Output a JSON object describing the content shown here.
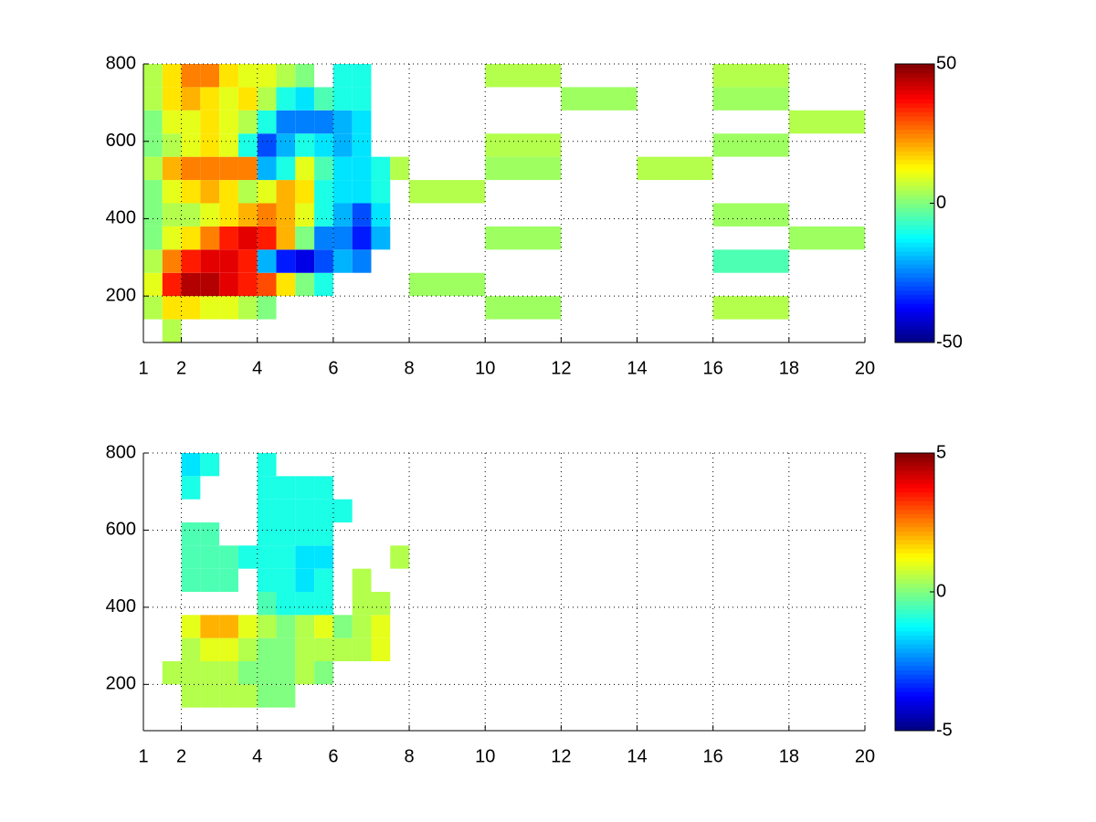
{
  "chart_data": [
    {
      "type": "heatmap",
      "colormap": "jet",
      "grid": true,
      "xlim": [
        1,
        20
      ],
      "ylim": [
        80,
        800
      ],
      "xticks": [
        1,
        2,
        4,
        6,
        8,
        10,
        12,
        14,
        16,
        18,
        20
      ],
      "yticks": [
        200,
        400,
        600,
        800
      ],
      "clim": [
        -50,
        50
      ],
      "cticks": [
        -50,
        0,
        50
      ],
      "xedges": [
        1,
        1.5,
        2,
        2.5,
        3,
        3.5,
        4,
        4.5,
        5,
        5.5,
        6,
        6.5,
        7,
        7.5,
        8,
        10,
        12,
        14,
        16,
        18,
        20
      ],
      "yedges": [
        80,
        140,
        200,
        260,
        320,
        380,
        440,
        500,
        560,
        620,
        680,
        740,
        800
      ],
      "values": [
        [
          null,
          5,
          null,
          null,
          null,
          null,
          null,
          null,
          null,
          null,
          null,
          null,
          null,
          null,
          null,
          null,
          null,
          null,
          null,
          null
        ],
        [
          5,
          15,
          15,
          10,
          10,
          5,
          0,
          null,
          null,
          null,
          null,
          null,
          null,
          null,
          null,
          3,
          null,
          null,
          5,
          null
        ],
        [
          10,
          35,
          45,
          45,
          40,
          35,
          30,
          15,
          0,
          -10,
          null,
          null,
          null,
          null,
          3,
          null,
          null,
          null,
          null,
          null
        ],
        [
          5,
          25,
          35,
          40,
          40,
          35,
          -20,
          -35,
          -40,
          -30,
          -20,
          -25,
          null,
          null,
          null,
          null,
          null,
          null,
          -5,
          null
        ],
        [
          0,
          10,
          15,
          25,
          35,
          40,
          35,
          20,
          0,
          -25,
          -25,
          -35,
          -20,
          null,
          null,
          3,
          null,
          null,
          null,
          3
        ],
        [
          0,
          5,
          5,
          10,
          15,
          20,
          25,
          20,
          10,
          -10,
          -20,
          -30,
          -15,
          null,
          null,
          null,
          null,
          null,
          3,
          null
        ],
        [
          0,
          10,
          15,
          20,
          15,
          5,
          10,
          20,
          15,
          -10,
          -15,
          -15,
          -10,
          null,
          5,
          null,
          null,
          null,
          null,
          null
        ],
        [
          5,
          20,
          25,
          25,
          25,
          25,
          -20,
          -10,
          10,
          -5,
          -15,
          -15,
          -10,
          5,
          null,
          3,
          null,
          5,
          null,
          null
        ],
        [
          0,
          5,
          10,
          15,
          10,
          -10,
          -30,
          -20,
          -10,
          -15,
          -20,
          -15,
          null,
          null,
          null,
          5,
          null,
          null,
          3,
          null
        ],
        [
          0,
          10,
          10,
          15,
          10,
          5,
          -10,
          -25,
          -25,
          -25,
          -20,
          -15,
          null,
          null,
          null,
          null,
          null,
          null,
          null,
          5
        ],
        [
          5,
          15,
          20,
          15,
          10,
          15,
          5,
          -10,
          -15,
          -5,
          -10,
          -10,
          null,
          null,
          null,
          null,
          3,
          null,
          3,
          null
        ],
        [
          5,
          15,
          25,
          25,
          15,
          10,
          10,
          5,
          0,
          null,
          -10,
          -10,
          null,
          null,
          null,
          5,
          null,
          null,
          5,
          null
        ]
      ]
    },
    {
      "type": "heatmap",
      "colormap": "jet",
      "grid": true,
      "xlim": [
        1,
        20
      ],
      "ylim": [
        80,
        800
      ],
      "xticks": [
        1,
        2,
        4,
        6,
        8,
        10,
        12,
        14,
        16,
        18,
        20
      ],
      "yticks": [
        200,
        400,
        600,
        800
      ],
      "clim": [
        -5,
        5
      ],
      "cticks": [
        -5,
        0,
        5
      ],
      "xedges": [
        1,
        1.5,
        2,
        2.5,
        3,
        3.5,
        4,
        4.5,
        5,
        5.5,
        6,
        6.5,
        7,
        7.5,
        8,
        10,
        12,
        14,
        16,
        18,
        20
      ],
      "yedges": [
        80,
        140,
        200,
        260,
        320,
        380,
        440,
        500,
        560,
        620,
        680,
        740,
        800
      ],
      "values": [
        [
          null,
          null,
          null,
          null,
          null,
          null,
          null,
          null,
          null,
          null,
          null,
          null,
          null,
          null,
          null,
          null,
          null,
          null,
          null,
          null
        ],
        [
          null,
          null,
          0.5,
          0.5,
          0.5,
          0.5,
          0,
          0,
          null,
          null,
          null,
          null,
          null,
          null,
          null,
          null,
          null,
          null,
          null,
          null
        ],
        [
          null,
          0.5,
          0.5,
          0.5,
          0.5,
          0,
          0,
          0,
          0.5,
          0,
          null,
          null,
          null,
          null,
          null,
          null,
          null,
          null,
          null,
          null
        ],
        [
          null,
          null,
          0.5,
          1,
          1,
          0.5,
          0,
          0,
          0.5,
          0.5,
          0.5,
          0.5,
          1,
          null,
          null,
          null,
          null,
          null,
          null,
          null
        ],
        [
          null,
          null,
          1,
          2,
          2,
          1,
          0.5,
          0,
          0.5,
          1,
          0,
          0.5,
          1,
          null,
          null,
          null,
          null,
          null,
          null,
          null
        ],
        [
          null,
          null,
          null,
          null,
          null,
          null,
          -0.5,
          -1,
          -1,
          -1,
          null,
          0.5,
          0.5,
          null,
          null,
          null,
          null,
          null,
          null,
          null
        ],
        [
          null,
          null,
          -0.5,
          -0.5,
          -0.5,
          null,
          -1,
          -1,
          -1.5,
          -1,
          null,
          0.5,
          null,
          null,
          null,
          null,
          null,
          null,
          null,
          null
        ],
        [
          null,
          null,
          -0.5,
          -0.5,
          -0.5,
          -1,
          -1,
          -1,
          -1.5,
          -1.5,
          null,
          null,
          null,
          0.5,
          null,
          null,
          null,
          null,
          null,
          null
        ],
        [
          null,
          null,
          -0.5,
          -0.5,
          null,
          null,
          -1,
          -1,
          -1,
          -1,
          null,
          null,
          null,
          null,
          null,
          null,
          null,
          null,
          null,
          null
        ],
        [
          null,
          null,
          null,
          null,
          null,
          null,
          -1,
          -1,
          -1,
          -1,
          -1,
          null,
          null,
          null,
          null,
          null,
          null,
          null,
          null,
          null
        ],
        [
          null,
          null,
          -1,
          null,
          null,
          null,
          -1,
          -1,
          -1,
          -1,
          null,
          null,
          null,
          null,
          null,
          null,
          null,
          null,
          null,
          null
        ],
        [
          null,
          null,
          -1.5,
          -1,
          null,
          null,
          -1,
          null,
          null,
          null,
          null,
          null,
          null,
          null,
          null,
          null,
          null,
          null,
          null,
          null
        ]
      ]
    }
  ]
}
